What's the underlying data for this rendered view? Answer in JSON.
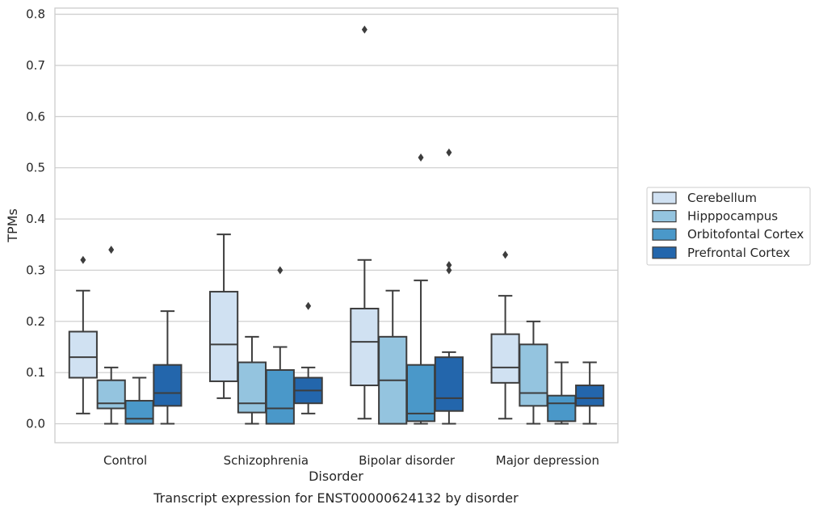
{
  "caption": "Transcript expression for ENST00000624132 by disorder",
  "chart_data": {
    "type": "box",
    "xlabel": "Disorder",
    "ylabel": "TPMs",
    "ylim": [
      -0.037,
      0.812
    ],
    "yticks": [
      "0.0",
      "0.1",
      "0.2",
      "0.3",
      "0.4",
      "0.5",
      "0.6",
      "0.7",
      "0.8"
    ],
    "grid": "horizontal",
    "legend_position": "right",
    "categories": [
      "Control",
      "Schizophrenia",
      "Bipolar disorder",
      "Major depression"
    ],
    "series": [
      {
        "name": "Cerebellum",
        "color": "#d0e1f2",
        "boxes": [
          {
            "whisker_low": 0.02,
            "q1": 0.09,
            "median": 0.13,
            "q3": 0.18,
            "whisker_high": 0.26,
            "outliers": [
              0.32
            ]
          },
          {
            "whisker_low": 0.05,
            "q1": 0.083,
            "median": 0.155,
            "q3": 0.258,
            "whisker_high": 0.37,
            "outliers": []
          },
          {
            "whisker_low": 0.01,
            "q1": 0.075,
            "median": 0.16,
            "q3": 0.225,
            "whisker_high": 0.32,
            "outliers": [
              0.77
            ]
          },
          {
            "whisker_low": 0.01,
            "q1": 0.08,
            "median": 0.11,
            "q3": 0.175,
            "whisker_high": 0.25,
            "outliers": [
              0.33
            ]
          }
        ]
      },
      {
        "name": "Hipppocampus",
        "color": "#94c4df",
        "boxes": [
          {
            "whisker_low": 0.0,
            "q1": 0.03,
            "median": 0.04,
            "q3": 0.085,
            "whisker_high": 0.11,
            "outliers": [
              0.34
            ]
          },
          {
            "whisker_low": 0.0,
            "q1": 0.022,
            "median": 0.04,
            "q3": 0.12,
            "whisker_high": 0.17,
            "outliers": []
          },
          {
            "whisker_low": 0.0,
            "q1": 0.0,
            "median": 0.085,
            "q3": 0.17,
            "whisker_high": 0.26,
            "outliers": []
          },
          {
            "whisker_low": 0.0,
            "q1": 0.035,
            "median": 0.06,
            "q3": 0.155,
            "whisker_high": 0.2,
            "outliers": []
          }
        ]
      },
      {
        "name": "Orbitofontal Cortex",
        "color": "#4a98c9",
        "boxes": [
          {
            "whisker_low": 0.0,
            "q1": 0.0,
            "median": 0.01,
            "q3": 0.045,
            "whisker_high": 0.09,
            "outliers": []
          },
          {
            "whisker_low": 0.0,
            "q1": 0.0,
            "median": 0.03,
            "q3": 0.105,
            "whisker_high": 0.15,
            "outliers": [
              0.3
            ]
          },
          {
            "whisker_low": 0.0,
            "q1": 0.005,
            "median": 0.02,
            "q3": 0.115,
            "whisker_high": 0.28,
            "outliers": [
              0.52
            ]
          },
          {
            "whisker_low": 0.0,
            "q1": 0.005,
            "median": 0.04,
            "q3": 0.055,
            "whisker_high": 0.12,
            "outliers": []
          }
        ]
      },
      {
        "name": "Prefrontal Cortex",
        "color": "#2366ac",
        "boxes": [
          {
            "whisker_low": 0.0,
            "q1": 0.035,
            "median": 0.06,
            "q3": 0.115,
            "whisker_high": 0.22,
            "outliers": []
          },
          {
            "whisker_low": 0.02,
            "q1": 0.04,
            "median": 0.065,
            "q3": 0.09,
            "whisker_high": 0.11,
            "outliers": [
              0.23
            ]
          },
          {
            "whisker_low": 0.0,
            "q1": 0.025,
            "median": 0.05,
            "q3": 0.13,
            "whisker_high": 0.14,
            "outliers": [
              0.3,
              0.31,
              0.53
            ]
          },
          {
            "whisker_low": 0.0,
            "q1": 0.035,
            "median": 0.05,
            "q3": 0.075,
            "whisker_high": 0.12,
            "outliers": []
          }
        ]
      }
    ]
  }
}
